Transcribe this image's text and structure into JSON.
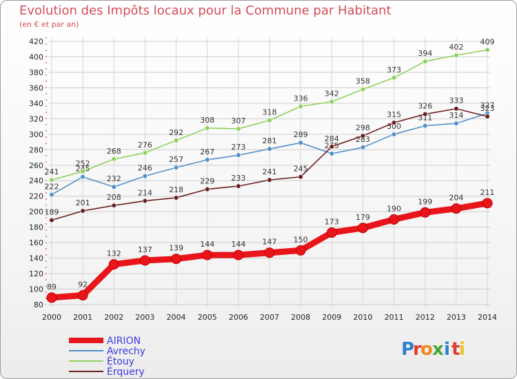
{
  "title": "Evolution des Impôts locaux pour la Commune par Habitant",
  "subtitle": "(en € et par an)",
  "brand": {
    "text": "Proxiti",
    "letters": [
      "P",
      "r",
      "o",
      "x",
      "i",
      "t",
      "i"
    ],
    "colors": [
      "#2f7fd0",
      "#e03c31",
      "#f08a1c",
      "#4aa33a",
      "#2f7fd0",
      "#e03c31",
      "#f0c020"
    ]
  },
  "chart_data": {
    "type": "line",
    "title": "Evolution des Impôts locaux pour la Commune par Habitant",
    "subtitle": "(en € et par an)",
    "x": [
      2000,
      2001,
      2002,
      2003,
      2004,
      2005,
      2006,
      2007,
      2008,
      2009,
      2010,
      2011,
      2012,
      2013,
      2014
    ],
    "ylim": [
      80,
      420
    ],
    "yticks": [
      80,
      100,
      120,
      140,
      160,
      180,
      200,
      220,
      240,
      260,
      280,
      300,
      320,
      340,
      360,
      380,
      400,
      420
    ],
    "grid": true,
    "legend_position": "bottom-left",
    "series": [
      {
        "name": "AIRION",
        "color": "#e8151b",
        "thick": true,
        "values": [
          89,
          92,
          132,
          137,
          139,
          144,
          144,
          147,
          150,
          173,
          179,
          190,
          199,
          204,
          211
        ]
      },
      {
        "name": "Avrechy",
        "color": "#4f90c8",
        "thick": false,
        "values": [
          222,
          245,
          232,
          246,
          257,
          267,
          273,
          281,
          289,
          275,
          283,
          300,
          311,
          314,
          327
        ]
      },
      {
        "name": "Étouy",
        "color": "#8fd15a",
        "thick": false,
        "values": [
          241,
          252,
          268,
          276,
          292,
          308,
          307,
          318,
          336,
          342,
          358,
          373,
          394,
          402,
          409
        ]
      },
      {
        "name": "Érquery",
        "color": "#6b1d1d",
        "thick": false,
        "values": [
          189,
          201,
          208,
          214,
          218,
          229,
          233,
          241,
          245,
          284,
          298,
          315,
          326,
          333,
          323
        ]
      }
    ]
  }
}
